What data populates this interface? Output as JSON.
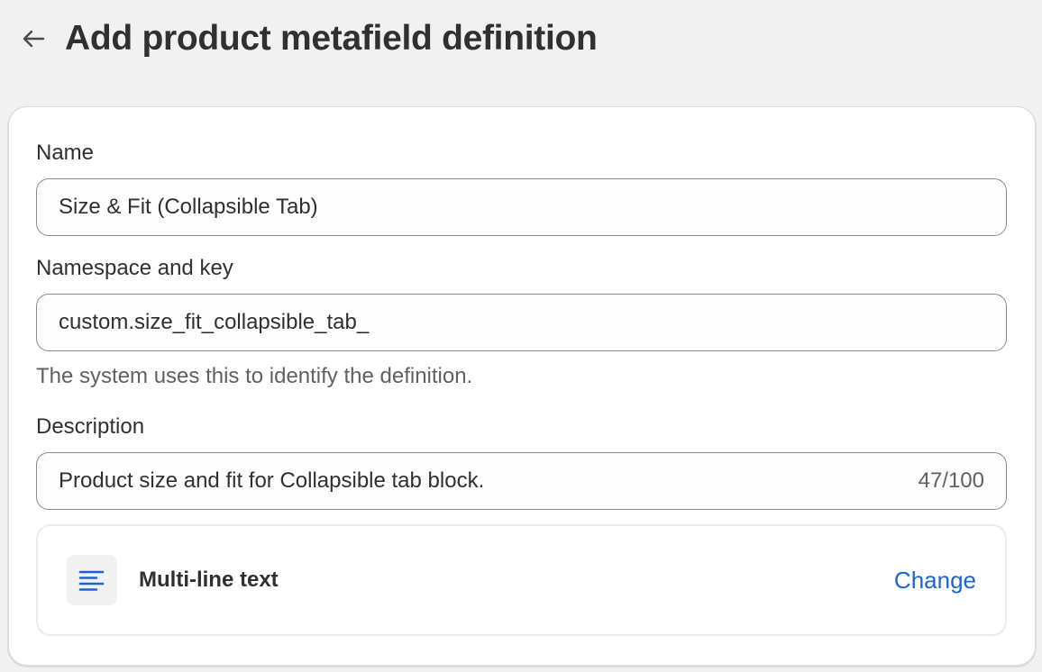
{
  "header": {
    "title": "Add product metafield definition",
    "back_icon": "arrow-left-icon"
  },
  "form": {
    "name": {
      "label": "Name",
      "value": "Size & Fit (Collapsible Tab)"
    },
    "namespace": {
      "label": "Namespace and key",
      "value": "custom.size_fit_collapsible_tab_",
      "help": "The system uses this to identify the definition."
    },
    "description": {
      "label": "Description",
      "value": "Product size and fit for Collapsible tab block.",
      "count": "47/100"
    },
    "type": {
      "icon": "text-align-left-icon",
      "name": "Multi-line text",
      "change_label": "Change"
    }
  },
  "colors": {
    "accent": "#1e63d4",
    "background": "#f1f1f1"
  }
}
